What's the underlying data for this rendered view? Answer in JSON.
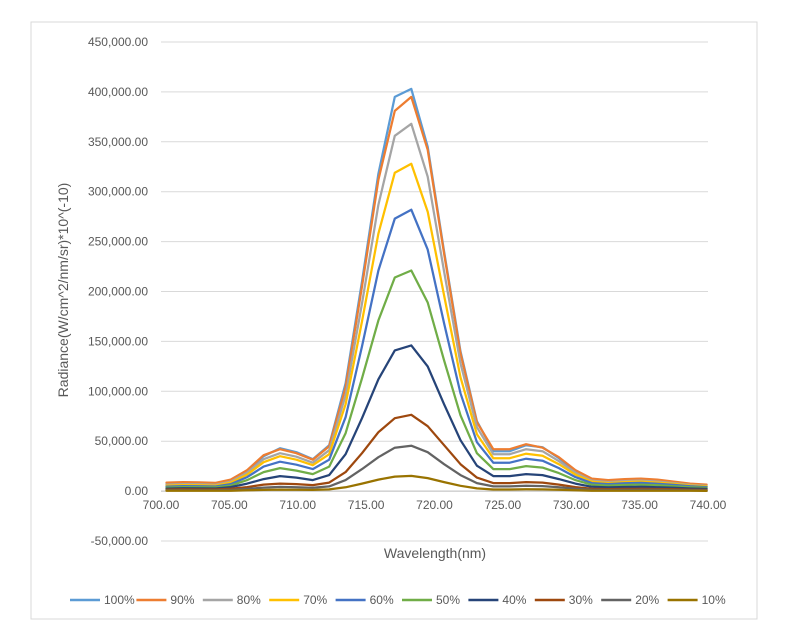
{
  "chart_data": {
    "type": "line",
    "title": "",
    "xlabel": "Wavelength(nm)",
    "ylabel": "Radiance(W/cm^2/nm/sr)*10^(-10)",
    "xlim": [
      700,
      740
    ],
    "ylim": [
      -50000,
      450000
    ],
    "x_ticks": [
      "700.00",
      "705.00",
      "710.00",
      "715.00",
      "720.00",
      "725.00",
      "730.00",
      "735.00",
      "740.00"
    ],
    "x_tick_values": [
      700,
      705,
      710,
      715,
      720,
      725,
      730,
      735,
      740
    ],
    "y_ticks": [
      "-50,000.00",
      "0.00",
      "50,000.00",
      "100,000.00",
      "150,000.00",
      "200,000.00",
      "250,000.00",
      "300,000.00",
      "350,000.00",
      "400,000.00",
      "450,000.00"
    ],
    "y_tick_values": [
      -50000,
      0,
      50000,
      100000,
      150000,
      200000,
      250000,
      300000,
      350000,
      400000,
      450000
    ],
    "grid": "horizontal",
    "legend_position": "bottom",
    "x": [
      700.4,
      701.6,
      702.8,
      704,
      705.1,
      706.3,
      707.5,
      708.7,
      709.9,
      711.1,
      712.3,
      713.5,
      714.7,
      715.9,
      717.1,
      718.3,
      719.5,
      720.7,
      721.9,
      723.1,
      724.3,
      725.5,
      726.7,
      727.9,
      729.1,
      730.3,
      731.5,
      732.7,
      733.9,
      735.1,
      736.3,
      737.5,
      738.7,
      739.9
    ],
    "series": [
      {
        "name": "100%",
        "color": "#5B9BD5",
        "values": [
          7000,
          7500,
          7200,
          6900,
          10000,
          20000,
          35000,
          43000,
          39000,
          32000,
          46000,
          108000,
          210000,
          318000,
          395000,
          403000,
          345000,
          240000,
          140000,
          70000,
          40000,
          40000,
          46000,
          44000,
          33000,
          20000,
          11000,
          9500,
          10500,
          11000,
          10500,
          8000,
          6000,
          5000
        ]
      },
      {
        "name": "90%",
        "color": "#ED7D31",
        "values": [
          8500,
          9000,
          8700,
          8200,
          11500,
          21000,
          36000,
          42000,
          38000,
          31500,
          45000,
          104000,
          205000,
          312000,
          381000,
          395000,
          342000,
          238000,
          138000,
          69000,
          42000,
          42000,
          47000,
          43500,
          34000,
          21000,
          12500,
          11000,
          12000,
          12500,
          11500,
          9500,
          7500,
          6500
        ]
      },
      {
        "name": "80%",
        "color": "#A5A5A5",
        "values": [
          6500,
          7000,
          6800,
          6400,
          9500,
          18500,
          32000,
          38000,
          34500,
          28500,
          41000,
          96000,
          188000,
          287000,
          356000,
          368000,
          315000,
          220000,
          128000,
          64000,
          37000,
          37000,
          42000,
          40000,
          30000,
          18500,
          10500,
          9000,
          10000,
          10500,
          9500,
          8000,
          6200,
          5200
        ]
      },
      {
        "name": "70%",
        "color": "#FFC000",
        "values": [
          5500,
          6000,
          5800,
          5500,
          8500,
          16500,
          29000,
          35000,
          31500,
          26000,
          37000,
          87000,
          170000,
          258000,
          319000,
          328000,
          280000,
          196000,
          114000,
          57000,
          33000,
          33000,
          37500,
          35500,
          27000,
          16500,
          9500,
          8000,
          9000,
          9500,
          8500,
          7200,
          5600,
          4700
        ]
      },
      {
        "name": "60%",
        "color": "#4472C4",
        "values": [
          4500,
          5000,
          4800,
          4600,
          7000,
          14000,
          24500,
          29500,
          26500,
          22000,
          31500,
          74000,
          145000,
          221000,
          273000,
          282000,
          242000,
          168000,
          98000,
          49000,
          28500,
          28500,
          32500,
          30500,
          23000,
          14000,
          8000,
          7000,
          7800,
          8200,
          7400,
          6200,
          4800,
          4000
        ]
      },
      {
        "name": "50%",
        "color": "#70AD47",
        "values": [
          3500,
          4000,
          3800,
          3700,
          5500,
          11000,
          19000,
          23000,
          20500,
          17000,
          24500,
          58000,
          113000,
          171000,
          214000,
          221000,
          189000,
          131000,
          76000,
          38000,
          22000,
          22000,
          25000,
          23500,
          18000,
          11000,
          6300,
          5500,
          6100,
          6400,
          5800,
          4900,
          3800,
          3200
        ]
      },
      {
        "name": "40%",
        "color": "#264478",
        "values": [
          2500,
          2800,
          2700,
          2600,
          4000,
          7500,
          12000,
          15000,
          13500,
          11000,
          16000,
          37000,
          73000,
          112000,
          141000,
          146000,
          125000,
          87000,
          51000,
          25500,
          15000,
          15000,
          17000,
          16000,
          12000,
          7500,
          4300,
          3700,
          4100,
          4300,
          3900,
          3300,
          2600,
          2200
        ]
      },
      {
        "name": "30%",
        "color": "#9E480E",
        "values": [
          1500,
          1700,
          1600,
          1600,
          2300,
          4000,
          6500,
          7500,
          7000,
          6000,
          8500,
          19000,
          38000,
          59000,
          73000,
          76500,
          65000,
          46000,
          27000,
          13500,
          8000,
          8000,
          9000,
          8500,
          6500,
          4000,
          2300,
          2000,
          2200,
          2300,
          2100,
          1800,
          1400,
          1200
        ]
      },
      {
        "name": "20%",
        "color": "#636363",
        "values": [
          800,
          900,
          850,
          850,
          1200,
          2200,
          3500,
          4200,
          3900,
          3300,
          4700,
          11000,
          22000,
          34000,
          43500,
          45500,
          39000,
          27000,
          16000,
          8000,
          4700,
          4700,
          5300,
          5000,
          3800,
          2300,
          1300,
          1100,
          1200,
          1300,
          1200,
          1000,
          800,
          700
        ]
      },
      {
        "name": "10%",
        "color": "#997300",
        "values": [
          300,
          350,
          330,
          320,
          450,
          800,
          1200,
          1500,
          1400,
          1200,
          1700,
          3800,
          7500,
          11500,
          14500,
          15200,
          13000,
          9000,
          5300,
          2700,
          1600,
          1600,
          1800,
          1700,
          1300,
          800,
          450,
          400,
          430,
          450,
          420,
          350,
          280,
          240
        ]
      }
    ]
  }
}
